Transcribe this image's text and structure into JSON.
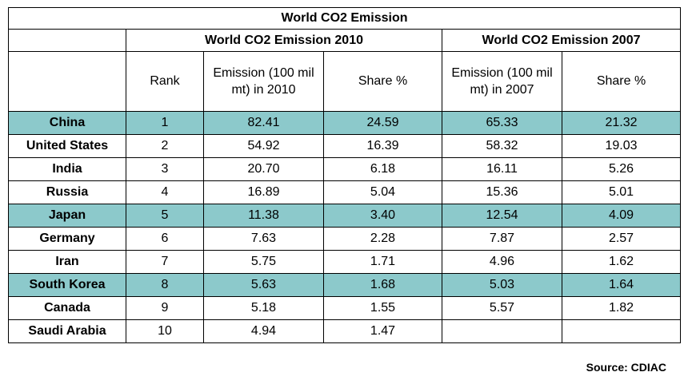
{
  "table": {
    "title": "World CO2 Emission",
    "group_2010": "World CO2 Emission 2010",
    "group_2007": "World CO2 Emission 2007",
    "col_rank": "Rank",
    "col_emission_2010": "Emission (100 mil mt) in 2010",
    "col_share_2010": "Share %",
    "col_emission_2007": "Emission (100 mil mt) in 2007",
    "col_share_2007": "Share %",
    "highlight_color": "#8cc9cb",
    "rows": [
      {
        "country": "China",
        "rank": "1",
        "em2010": "82.41",
        "sh2010": "24.59",
        "em2007": "65.33",
        "sh2007": "21.32",
        "highlight": true
      },
      {
        "country": "United States",
        "rank": "2",
        "em2010": "54.92",
        "sh2010": "16.39",
        "em2007": "58.32",
        "sh2007": "19.03",
        "highlight": false
      },
      {
        "country": "India",
        "rank": "3",
        "em2010": "20.70",
        "sh2010": "6.18",
        "em2007": "16.11",
        "sh2007": "5.26",
        "highlight": false
      },
      {
        "country": "Russia",
        "rank": "4",
        "em2010": "16.89",
        "sh2010": "5.04",
        "em2007": "15.36",
        "sh2007": "5.01",
        "highlight": false
      },
      {
        "country": "Japan",
        "rank": "5",
        "em2010": "11.38",
        "sh2010": "3.40",
        "em2007": "12.54",
        "sh2007": "4.09",
        "highlight": true
      },
      {
        "country": "Germany",
        "rank": "6",
        "em2010": "7.63",
        "sh2010": "2.28",
        "em2007": "7.87",
        "sh2007": "2.57",
        "highlight": false
      },
      {
        "country": "Iran",
        "rank": "7",
        "em2010": "5.75",
        "sh2010": "1.71",
        "em2007": "4.96",
        "sh2007": "1.62",
        "highlight": false
      },
      {
        "country": "South Korea",
        "rank": "8",
        "em2010": "5.63",
        "sh2010": "1.68",
        "em2007": "5.03",
        "sh2007": "1.64",
        "highlight": true
      },
      {
        "country": "Canada",
        "rank": "9",
        "em2010": "5.18",
        "sh2010": "1.55",
        "em2007": "5.57",
        "sh2007": "1.82",
        "highlight": false
      },
      {
        "country": "Saudi Arabia",
        "rank": "10",
        "em2010": "4.94",
        "sh2010": "1.47",
        "em2007": "",
        "sh2007": "",
        "highlight": false
      }
    ]
  },
  "source": "Source: CDIAC"
}
